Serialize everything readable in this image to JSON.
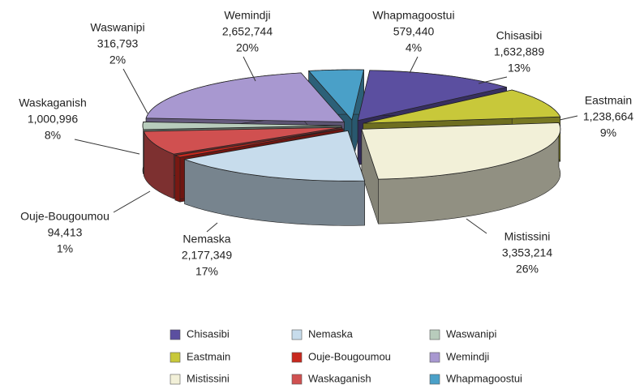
{
  "chart_data": {
    "type": "pie3d",
    "categories": [
      "Chisasibi",
      "Eastmain",
      "Mistissini",
      "Nemaska",
      "Ouje-Bougoumou",
      "Waskaganish",
      "Waswanipi",
      "Wemindji",
      "Whapmagoostui"
    ],
    "values": [
      1632889,
      1238664,
      3353214,
      2177349,
      94413,
      1000996,
      316793,
      2652744,
      579440
    ],
    "value_labels": [
      "1,632,889",
      "1,238,664",
      "3,353,214",
      "2,177,349",
      "94,413",
      "1,000,996",
      "316,793",
      "2,652,744",
      "579,440"
    ],
    "percent_labels": [
      "13%",
      "9%",
      "26%",
      "17%",
      "1%",
      "8%",
      "2%",
      "20%",
      "4%"
    ],
    "colors": [
      "#5b4fa0",
      "#c8c83a",
      "#f2f0d8",
      "#c7dcec",
      "#c8281e",
      "#d05050",
      "#b8ccbc",
      "#a898d0",
      "#4aa0c8"
    ],
    "legend": "bottom"
  }
}
